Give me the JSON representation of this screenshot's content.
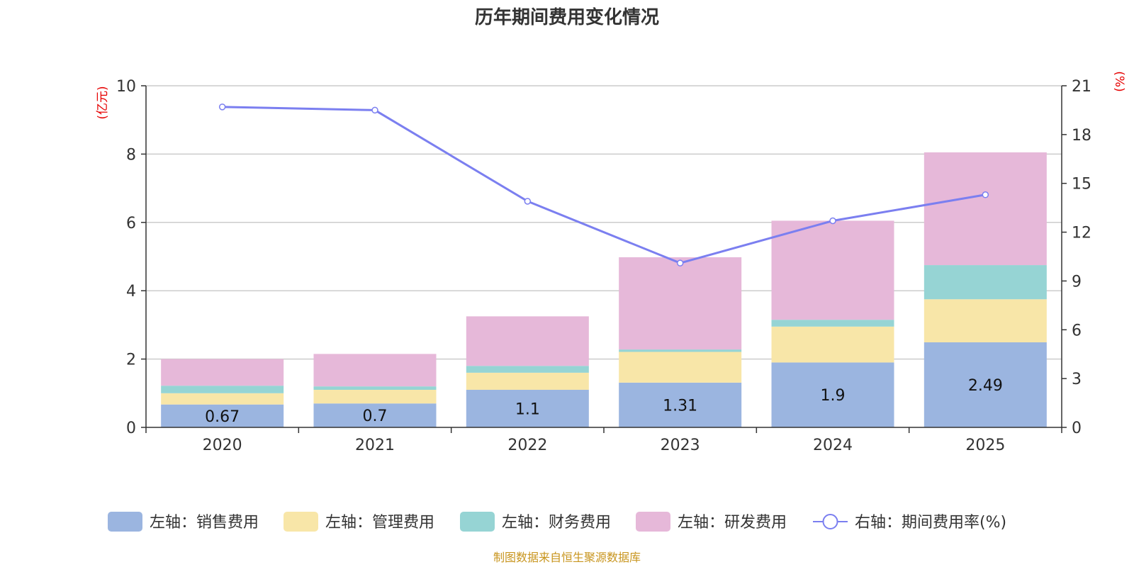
{
  "chart_data": {
    "type": "bar",
    "title": "历年期间费用变化情况",
    "categories": [
      "2020",
      "2021",
      "2022",
      "2023",
      "2024",
      "2025"
    ],
    "y_left": {
      "unit": "(亿元)",
      "min": 0,
      "max": 10,
      "ticks": [
        0,
        2,
        4,
        6,
        8,
        10
      ]
    },
    "y_right": {
      "unit": "(%)",
      "min": 0,
      "max": 21,
      "ticks": [
        0,
        3,
        6,
        9,
        12,
        15,
        18,
        21
      ]
    },
    "stack_series": [
      {
        "name": "左轴：销售费用",
        "color": "#9bb5e0",
        "values": [
          0.67,
          0.7,
          1.1,
          1.31,
          1.9,
          2.49
        ],
        "show_labels": true
      },
      {
        "name": "左轴：管理费用",
        "color": "#f8e6a8",
        "values": [
          0.33,
          0.4,
          0.5,
          0.9,
          1.05,
          1.26
        ],
        "show_labels": false
      },
      {
        "name": "左轴：财务费用",
        "color": "#96d4d4",
        "values": [
          0.22,
          0.1,
          0.2,
          0.07,
          0.2,
          1.0
        ],
        "show_labels": false
      },
      {
        "name": "左轴：研发费用",
        "color": "#e6b8d9",
        "values": [
          0.78,
          0.95,
          1.45,
          2.7,
          2.9,
          3.3
        ],
        "show_labels": false
      }
    ],
    "bar_labels": [
      "0.67",
      "0.7",
      "1.1",
      "1.31",
      "1.9",
      "2.49"
    ],
    "line_series": {
      "name": "右轴：期间费用率(%)",
      "color": "#7b7ff0",
      "values": [
        19.7,
        19.5,
        13.9,
        10.1,
        12.7,
        14.3
      ]
    },
    "grid": true,
    "legend_position": "bottom"
  },
  "source_text": "制图数据来自恒生聚源数据库"
}
